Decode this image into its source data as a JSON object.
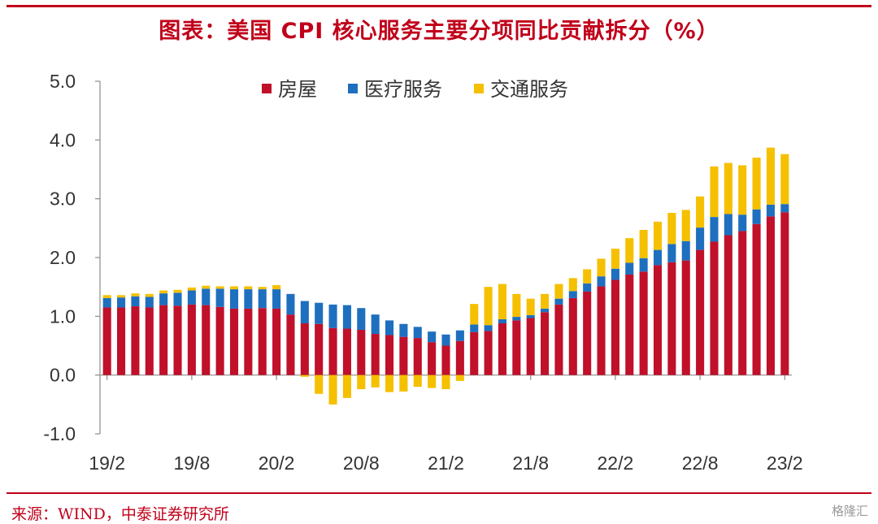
{
  "title": "图表：美国 CPI 核心服务主要分项同比贡献拆分（%）",
  "source": "来源：WIND，中泰证券研究所",
  "watermark": "格隆汇",
  "chart_data": {
    "type": "bar",
    "stacked": true,
    "ylim": [
      -1.0,
      5.0
    ],
    "yticks": [
      "-1.0",
      "0.0",
      "1.0",
      "2.0",
      "3.0",
      "4.0",
      "5.0"
    ],
    "ytick_values": [
      -1,
      0,
      1,
      2,
      3,
      4,
      5
    ],
    "xtick_labels": [
      "19/2",
      "19/8",
      "20/2",
      "20/8",
      "21/2",
      "21/8",
      "22/2",
      "22/8",
      "23/2"
    ],
    "xtick_every": 6,
    "legend_position": "top-center",
    "categories": [
      "19/2",
      "19/3",
      "19/4",
      "19/5",
      "19/6",
      "19/7",
      "19/8",
      "19/9",
      "19/10",
      "19/11",
      "19/12",
      "20/1",
      "20/2",
      "20/3",
      "20/4",
      "20/5",
      "20/6",
      "20/7",
      "20/8",
      "20/9",
      "20/10",
      "20/11",
      "20/12",
      "21/1",
      "21/2",
      "21/3",
      "21/4",
      "21/5",
      "21/6",
      "21/7",
      "21/8",
      "21/9",
      "21/10",
      "21/11",
      "21/12",
      "22/1",
      "22/2",
      "22/3",
      "22/4",
      "22/5",
      "22/6",
      "22/7",
      "22/8",
      "22/9",
      "22/10",
      "22/11",
      "22/12",
      "23/1",
      "23/2"
    ],
    "series": [
      {
        "name": "房屋",
        "color": "#c0102a",
        "values": [
          1.15,
          1.15,
          1.17,
          1.15,
          1.19,
          1.18,
          1.2,
          1.19,
          1.16,
          1.13,
          1.13,
          1.14,
          1.13,
          1.03,
          0.88,
          0.87,
          0.8,
          0.79,
          0.77,
          0.7,
          0.68,
          0.65,
          0.63,
          0.56,
          0.5,
          0.58,
          0.73,
          0.75,
          0.88,
          0.93,
          0.97,
          1.07,
          1.2,
          1.31,
          1.42,
          1.51,
          1.62,
          1.71,
          1.76,
          1.87,
          1.92,
          1.95,
          2.13,
          2.27,
          2.38,
          2.45,
          2.57,
          2.7,
          2.77
        ]
      },
      {
        "name": "医疗服务",
        "color": "#1f6fbf",
        "values": [
          0.16,
          0.17,
          0.17,
          0.18,
          0.2,
          0.22,
          0.24,
          0.28,
          0.31,
          0.33,
          0.33,
          0.32,
          0.33,
          0.35,
          0.38,
          0.36,
          0.4,
          0.4,
          0.37,
          0.33,
          0.25,
          0.22,
          0.19,
          0.18,
          0.19,
          0.18,
          0.13,
          0.1,
          0.07,
          0.06,
          0.05,
          0.06,
          0.1,
          0.12,
          0.14,
          0.17,
          0.19,
          0.2,
          0.23,
          0.26,
          0.31,
          0.33,
          0.38,
          0.42,
          0.36,
          0.28,
          0.25,
          0.2,
          0.14
        ]
      },
      {
        "name": "交通服务",
        "color": "#f5c000",
        "values": [
          0.05,
          0.04,
          0.05,
          0.05,
          0.05,
          0.05,
          0.05,
          0.05,
          0.04,
          0.05,
          0.05,
          0.04,
          0.07,
          0.0,
          -0.03,
          -0.32,
          -0.5,
          -0.39,
          -0.24,
          -0.21,
          -0.29,
          -0.28,
          -0.2,
          -0.22,
          -0.24,
          -0.1,
          0.35,
          0.65,
          0.6,
          0.39,
          0.28,
          0.25,
          0.25,
          0.22,
          0.24,
          0.3,
          0.34,
          0.42,
          0.48,
          0.48,
          0.53,
          0.53,
          0.53,
          0.86,
          0.87,
          0.84,
          0.88,
          0.97,
          0.85
        ]
      }
    ]
  }
}
